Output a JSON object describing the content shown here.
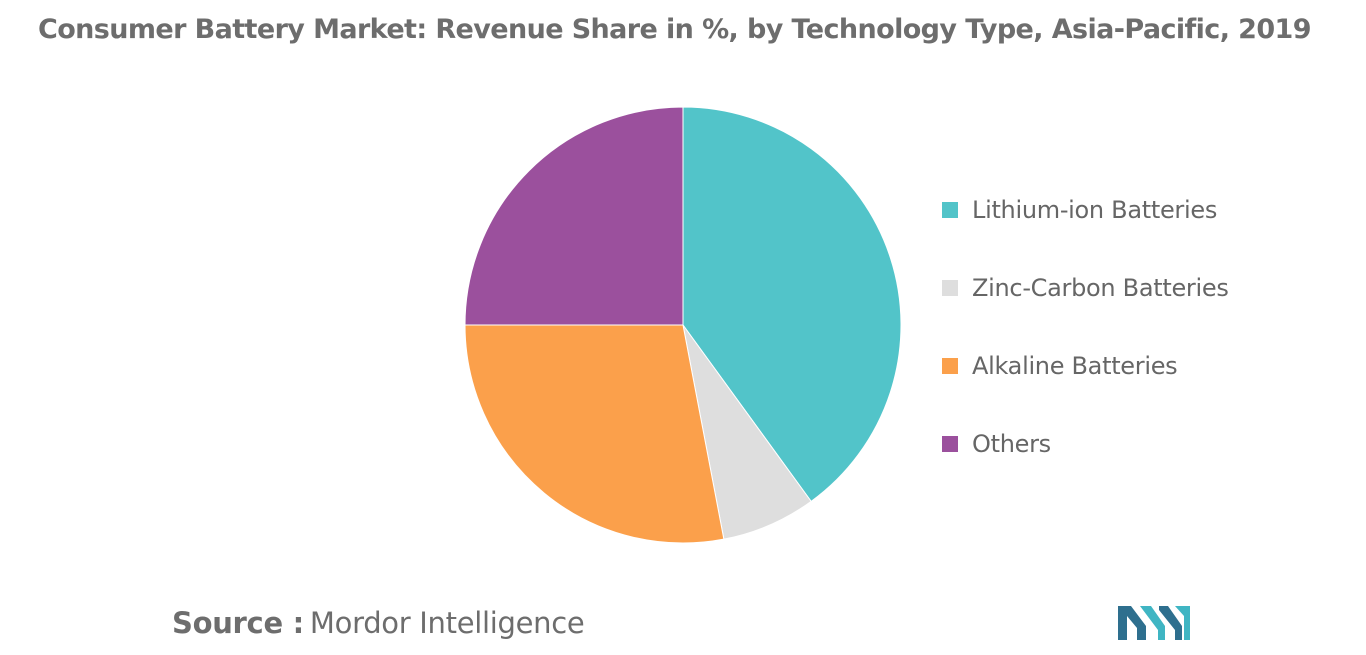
{
  "title": "Consumer Battery Market: Revenue Share in %, by Technology Type, Asia-Pacific, 2019",
  "source": {
    "label": "Source :",
    "value": "Mordor Intelligence"
  },
  "logo_icon": "mordor-intelligence-logo-icon",
  "chart_data": {
    "type": "pie",
    "title": "Consumer Battery Market: Revenue Share in %, by Technology Type, Asia-Pacific, 2019",
    "start_angle_deg": 0,
    "direction": "clockwise",
    "legend_position": "right",
    "series": [
      {
        "name": "Lithium-ion Batteries",
        "value": 40,
        "color": "#52c4c9"
      },
      {
        "name": "Zinc-Carbon Batteries",
        "value": 7,
        "color": "#dedede"
      },
      {
        "name": "Alkaline Batteries",
        "value": 28,
        "color": "#fba04b"
      },
      {
        "name": "Others",
        "value": 25,
        "color": "#9b509d"
      }
    ]
  }
}
